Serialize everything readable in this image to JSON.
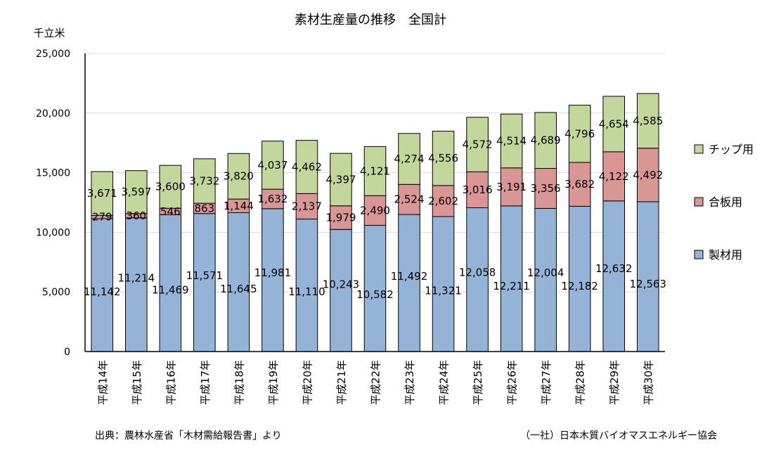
{
  "chart_data": {
    "type": "bar",
    "stacked": true,
    "title": "素材生産量の推移　全国計",
    "ylabel": "千立米",
    "ylim": [
      0,
      25000
    ],
    "yticks": [
      "0",
      "5,000",
      "10,000",
      "15,000",
      "20,000",
      "25,000"
    ],
    "ytick_values": [
      0,
      5000,
      10000,
      15000,
      20000,
      25000
    ],
    "grid": true,
    "legend_position": "right",
    "categories": [
      "平成14年",
      "平成15年",
      "平成16年",
      "平成17年",
      "平成18年",
      "平成19年",
      "平成20年",
      "平成21年",
      "平成22年",
      "平成23年",
      "平成24年",
      "平成25年",
      "平成26年",
      "平成27年",
      "平成28年",
      "平成29年",
      "平成30年"
    ],
    "series": [
      {
        "name": "製材用",
        "color": "#95b3d7",
        "values": [
          11142,
          11214,
          11469,
          11571,
          11645,
          11981,
          11110,
          10243,
          10582,
          11492,
          11321,
          12058,
          12211,
          12004,
          12182,
          12632,
          12563
        ],
        "labels": [
          "11,142",
          "11,214",
          "11,469",
          "11,571",
          "11,645",
          "11,981",
          "11,110",
          "10,243",
          "10,582",
          "11,492",
          "11,321",
          "12,058",
          "12,211",
          "12,004",
          "12,182",
          "12,632",
          "12,563"
        ]
      },
      {
        "name": "合板用",
        "color": "#d99694",
        "values": [
          279,
          360,
          546,
          863,
          1144,
          1632,
          2137,
          1979,
          2490,
          2524,
          2602,
          3016,
          3191,
          3356,
          3682,
          4122,
          4492
        ],
        "labels": [
          "279",
          "360",
          "546",
          "863",
          "1,144",
          "1,632",
          "2,137",
          "1,979",
          "2,490",
          "2,524",
          "2,602",
          "3,016",
          "3,191",
          "3,356",
          "3,682",
          "4,122",
          "4,492"
        ]
      },
      {
        "name": "チップ用",
        "color": "#c3d69b",
        "values": [
          3671,
          3597,
          3600,
          3732,
          3820,
          4037,
          4462,
          4397,
          4121,
          4274,
          4556,
          4572,
          4514,
          4689,
          4796,
          4654,
          4585
        ],
        "labels": [
          "3,671",
          "3,597",
          "3,600",
          "3,732",
          "3,820",
          "4,037",
          "4,462",
          "4,397",
          "4,121",
          "4,274",
          "4,556",
          "4,572",
          "4,514",
          "4,689",
          "4,796",
          "4,654",
          "4,585"
        ]
      }
    ],
    "source_left": "出典：農林水産省「木材需給報告書」より",
    "source_right": "（一社）日本木質バイオマスエネルギー協会"
  }
}
